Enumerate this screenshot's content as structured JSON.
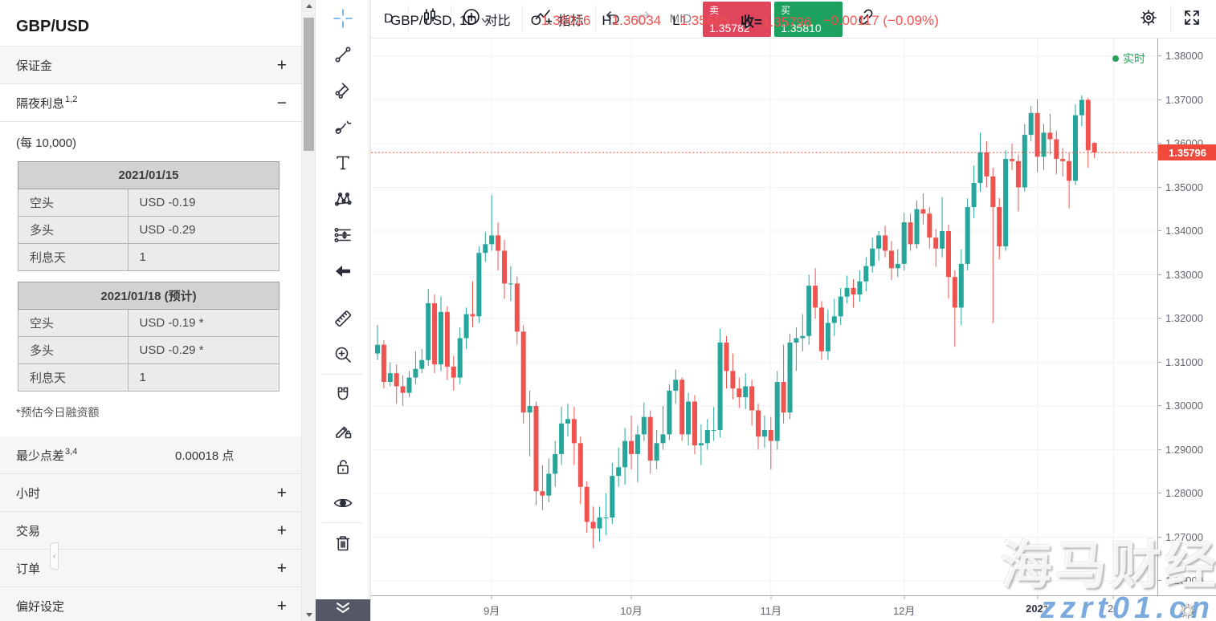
{
  "left_panel": {
    "title": "GBP/USD",
    "margin_section": {
      "label": "保证金",
      "toggle": "collapsed"
    },
    "overnight": {
      "label": "隔夜利息",
      "sup": "1,2",
      "toggle": "expanded",
      "unit_note": "(每 10,000)",
      "tables": [
        {
          "date": "2021/01/15",
          "rows": [
            [
              "空头",
              "USD -0.19"
            ],
            [
              "多头",
              "USD -0.29"
            ],
            [
              "利息天",
              "1"
            ]
          ]
        },
        {
          "date": "2021/01/18 (预计)",
          "rows": [
            [
              "空头",
              "USD -0.19 *"
            ],
            [
              "多头",
              "USD -0.29 *"
            ],
            [
              "利息天",
              "1"
            ]
          ]
        }
      ],
      "footnote": "*预估今日融资额"
    },
    "min_spread": {
      "label": "最少点差",
      "sup": "3,4",
      "value": "0.00018 点"
    },
    "collapsed_sections": [
      {
        "label": "小时"
      },
      {
        "label": "交易"
      },
      {
        "label": "订单"
      },
      {
        "label": "偏好设定"
      }
    ]
  },
  "drawing_toolbar": {
    "groups": [
      [
        {
          "icon": "crosshair-icon",
          "active": true
        },
        {
          "icon": "trend-line-icon"
        },
        {
          "icon": "pitchfork-icon"
        },
        {
          "icon": "brush-icon"
        },
        {
          "icon": "text-tool-icon"
        },
        {
          "icon": "xabcd-pattern-icon"
        },
        {
          "icon": "long-position-icon"
        },
        {
          "icon": "arrow-marker-icon"
        }
      ],
      [
        {
          "icon": "ruler-icon"
        },
        {
          "icon": "zoom-in-icon"
        }
      ],
      [
        {
          "icon": "magnet-icon"
        },
        {
          "icon": "drawing-edit-lock-icon"
        },
        {
          "icon": "lock-all-icon"
        },
        {
          "icon": "hide-all-icon"
        }
      ],
      [
        {
          "icon": "trash-icon"
        }
      ]
    ],
    "bottom_button_icon": "chevrons-down-icon",
    "collapse_handle_icon": "chevron-left-icon"
  },
  "top_toolbar": {
    "interval": "D",
    "chart_style_icon": "candles-icon",
    "compare_label": "对比",
    "indicators_label": "指标",
    "mid_label": "MID",
    "sell": {
      "label": "卖",
      "price": "1.35782",
      "color": "#e0455c"
    },
    "buy": {
      "label": "买",
      "price": "1.35810",
      "color": "#1ca15f"
    },
    "link_icon": "link-icon",
    "settings_icon": "gear-icon",
    "fullscreen_icon": "fullscreen-icon"
  },
  "chart": {
    "legend": {
      "symbol": "GBP/USD, 1D",
      "o_label": "O",
      "o_value": "1.36016",
      "h_label": "H",
      "h_value": "1.36034",
      "l_label": "L",
      "l_value": "1.35665",
      "close_label": "收=",
      "close_value": "1.35796",
      "change": "−0.00117 (−0.09%)"
    },
    "realtime_label": "实时",
    "colors": {
      "up": "#26a69a",
      "down": "#ef5350",
      "grid": "#f0f2f5",
      "last_price": "#f04a3c",
      "ohlc_text": "#ef5350",
      "realtime": "#2aa05a"
    },
    "chart_data": {
      "type": "candlestick",
      "symbol": "GBP/USD",
      "interval": "1D",
      "last_price": 1.35796,
      "last_price_label": "1.35796",
      "price_axis": {
        "min": 1.26,
        "max": 1.38,
        "step": 0.01,
        "tick_labels": [
          "1.38000",
          "1.37000",
          "1.36000",
          "1.35000",
          "1.34000",
          "1.33000",
          "1.32000",
          "1.31000",
          "1.30000",
          "1.29000",
          "1.28000",
          "1.27000",
          "1.26000"
        ]
      },
      "time_ticks": [
        {
          "label": "9月",
          "index": 18
        },
        {
          "label": "10月",
          "index": 40
        },
        {
          "label": "11月",
          "index": 62
        },
        {
          "label": "12月",
          "index": 83
        },
        {
          "label": "2021",
          "index": 104,
          "strong": true
        },
        {
          "label": "20",
          "index": 116
        }
      ],
      "candles": [
        [
          1.312,
          1.3185,
          1.3105,
          1.314
        ],
        [
          1.314,
          1.315,
          1.304,
          1.3055
        ],
        [
          1.3055,
          1.31,
          1.3045,
          1.3075
        ],
        [
          1.3075,
          1.3095,
          1.3005,
          1.3045
        ],
        [
          1.3045,
          1.307,
          1.3,
          1.303
        ],
        [
          1.303,
          1.308,
          1.302,
          1.3065
        ],
        [
          1.3065,
          1.3125,
          1.305,
          1.3085
        ],
        [
          1.3085,
          1.313,
          1.3075,
          1.3105
        ],
        [
          1.3105,
          1.3268,
          1.3092,
          1.3235
        ],
        [
          1.3235,
          1.3255,
          1.3075,
          1.3095
        ],
        [
          1.3095,
          1.325,
          1.308,
          1.3215
        ],
        [
          1.3215,
          1.3228,
          1.306,
          1.309
        ],
        [
          1.309,
          1.3115,
          1.3035,
          1.3065
        ],
        [
          1.3065,
          1.318,
          1.305,
          1.3155
        ],
        [
          1.3155,
          1.3225,
          1.313,
          1.321
        ],
        [
          1.321,
          1.3285,
          1.318,
          1.3205
        ],
        [
          1.3205,
          1.3365,
          1.319,
          1.335
        ],
        [
          1.335,
          1.3398,
          1.333,
          1.337
        ],
        [
          1.337,
          1.3482,
          1.3355,
          1.339
        ],
        [
          1.339,
          1.342,
          1.331,
          1.3355
        ],
        [
          1.3355,
          1.338,
          1.3245,
          1.328
        ],
        [
          1.328,
          1.332,
          1.324,
          1.328
        ],
        [
          1.328,
          1.3296,
          1.314,
          1.317
        ],
        [
          1.317,
          1.3185,
          1.296,
          1.2985
        ],
        [
          1.2985,
          1.3035,
          1.2885,
          1.3
        ],
        [
          1.3,
          1.301,
          1.2773,
          1.2805
        ],
        [
          1.2805,
          1.2865,
          1.2762,
          1.2795
        ],
        [
          1.2795,
          1.288,
          1.278,
          1.2845
        ],
        [
          1.2845,
          1.292,
          1.2815,
          1.289
        ],
        [
          1.289,
          1.2998,
          1.2865,
          1.296
        ],
        [
          1.296,
          1.3005,
          1.293,
          1.297
        ],
        [
          1.297,
          1.2998,
          1.2865,
          1.2915
        ],
        [
          1.2915,
          1.293,
          1.2775,
          1.2815
        ],
        [
          1.2815,
          1.2828,
          1.271,
          1.2735
        ],
        [
          1.2735,
          1.277,
          1.2675,
          1.272
        ],
        [
          1.272,
          1.277,
          1.269,
          1.2745
        ],
        [
          1.2745,
          1.28,
          1.2705,
          1.2745
        ],
        [
          1.2745,
          1.287,
          1.273,
          1.284
        ],
        [
          1.284,
          1.2905,
          1.2815,
          1.286
        ],
        [
          1.286,
          1.295,
          1.282,
          1.292
        ],
        [
          1.292,
          1.2978,
          1.2855,
          1.289
        ],
        [
          1.289,
          1.2955,
          1.2825,
          1.2935
        ],
        [
          1.2935,
          1.3008,
          1.292,
          1.2975
        ],
        [
          1.2975,
          1.299,
          1.2845,
          1.2875
        ],
        [
          1.2875,
          1.2945,
          1.2855,
          1.2915
        ],
        [
          1.2915,
          1.3,
          1.29,
          1.2935
        ],
        [
          1.2935,
          1.305,
          1.2922,
          1.3035
        ],
        [
          1.3035,
          1.3083,
          1.3005,
          1.306
        ],
        [
          1.306,
          1.3065,
          1.292,
          1.2935
        ],
        [
          1.2935,
          1.303,
          1.291,
          1.301
        ],
        [
          1.301,
          1.3025,
          1.289,
          1.291
        ],
        [
          1.291,
          1.2958,
          1.2865,
          1.2915
        ],
        [
          1.2915,
          1.297,
          1.29,
          1.2945
        ],
        [
          1.2945,
          1.2998,
          1.292,
          1.2945
        ],
        [
          1.2945,
          1.3177,
          1.2928,
          1.3145
        ],
        [
          1.3145,
          1.316,
          1.304,
          1.308
        ],
        [
          1.308,
          1.312,
          1.3015,
          1.304
        ],
        [
          1.304,
          1.3065,
          1.2995,
          1.302
        ],
        [
          1.302,
          1.3075,
          1.2993,
          1.3045
        ],
        [
          1.3045,
          1.306,
          1.2955,
          1.299
        ],
        [
          1.299,
          1.3005,
          1.29,
          1.293
        ],
        [
          1.293,
          1.2978,
          1.2905,
          1.2945
        ],
        [
          1.2945,
          1.2975,
          1.2855,
          1.292
        ],
        [
          1.292,
          1.308,
          1.29,
          1.3055
        ],
        [
          1.3055,
          1.314,
          1.296,
          1.2985
        ],
        [
          1.2985,
          1.3165,
          1.297,
          1.3145
        ],
        [
          1.3145,
          1.318,
          1.308,
          1.3155
        ],
        [
          1.3155,
          1.321,
          1.3125,
          1.316
        ],
        [
          1.316,
          1.33,
          1.314,
          1.3275
        ],
        [
          1.3275,
          1.3315,
          1.32,
          1.3225
        ],
        [
          1.3225,
          1.324,
          1.3105,
          1.3125
        ],
        [
          1.3125,
          1.322,
          1.3105,
          1.319
        ],
        [
          1.319,
          1.3245,
          1.316,
          1.3205
        ],
        [
          1.3205,
          1.327,
          1.3185,
          1.325
        ],
        [
          1.325,
          1.3298,
          1.3235,
          1.327
        ],
        [
          1.327,
          1.329,
          1.3225,
          1.3255
        ],
        [
          1.3255,
          1.331,
          1.3238,
          1.3285
        ],
        [
          1.3285,
          1.334,
          1.3262,
          1.332
        ],
        [
          1.332,
          1.3385,
          1.3305,
          1.336
        ],
        [
          1.336,
          1.34,
          1.3332,
          1.339
        ],
        [
          1.339,
          1.3412,
          1.334,
          1.3355
        ],
        [
          1.3355,
          1.3377,
          1.3288,
          1.3315
        ],
        [
          1.3315,
          1.3358,
          1.3295,
          1.3325
        ],
        [
          1.3325,
          1.3442,
          1.331,
          1.342
        ],
        [
          1.342,
          1.344,
          1.3355,
          1.337
        ],
        [
          1.337,
          1.347,
          1.336,
          1.345
        ],
        [
          1.345,
          1.3486,
          1.3415,
          1.344
        ],
        [
          1.344,
          1.3455,
          1.336,
          1.3385
        ],
        [
          1.3385,
          1.3405,
          1.3318,
          1.336
        ],
        [
          1.336,
          1.3478,
          1.334,
          1.34
        ],
        [
          1.34,
          1.3415,
          1.3245,
          1.3295
        ],
        [
          1.3295,
          1.331,
          1.3135,
          1.3225
        ],
        [
          1.3225,
          1.3358,
          1.3185,
          1.3325
        ],
        [
          1.3325,
          1.3475,
          1.331,
          1.3455
        ],
        [
          1.3455,
          1.355,
          1.343,
          1.351
        ],
        [
          1.351,
          1.3625,
          1.349,
          1.358
        ],
        [
          1.358,
          1.3605,
          1.35,
          1.3525
        ],
        [
          1.3525,
          1.3545,
          1.319,
          1.3455
        ],
        [
          1.3455,
          1.3475,
          1.3335,
          1.3365
        ],
        [
          1.3365,
          1.3585,
          1.3355,
          1.3565
        ],
        [
          1.3565,
          1.36,
          1.354,
          1.356
        ],
        [
          1.356,
          1.3575,
          1.3445,
          1.35
        ],
        [
          1.35,
          1.3645,
          1.349,
          1.362
        ],
        [
          1.362,
          1.3686,
          1.3605,
          1.367
        ],
        [
          1.367,
          1.3702,
          1.3535,
          1.357
        ],
        [
          1.357,
          1.3645,
          1.354,
          1.3625
        ],
        [
          1.3625,
          1.3668,
          1.3575,
          1.361
        ],
        [
          1.361,
          1.363,
          1.353,
          1.3565
        ],
        [
          1.3565,
          1.359,
          1.3525,
          1.356
        ],
        [
          1.356,
          1.358,
          1.3452,
          1.3515
        ],
        [
          1.3515,
          1.369,
          1.3505,
          1.3665
        ],
        [
          1.3665,
          1.371,
          1.364,
          1.37
        ],
        [
          1.37,
          1.3705,
          1.3545,
          1.3585
        ],
        [
          1.36016,
          1.36034,
          1.35665,
          1.35796
        ]
      ]
    }
  },
  "watermark": {
    "line1": "海马财经",
    "line2": "zzrt01.cn"
  }
}
